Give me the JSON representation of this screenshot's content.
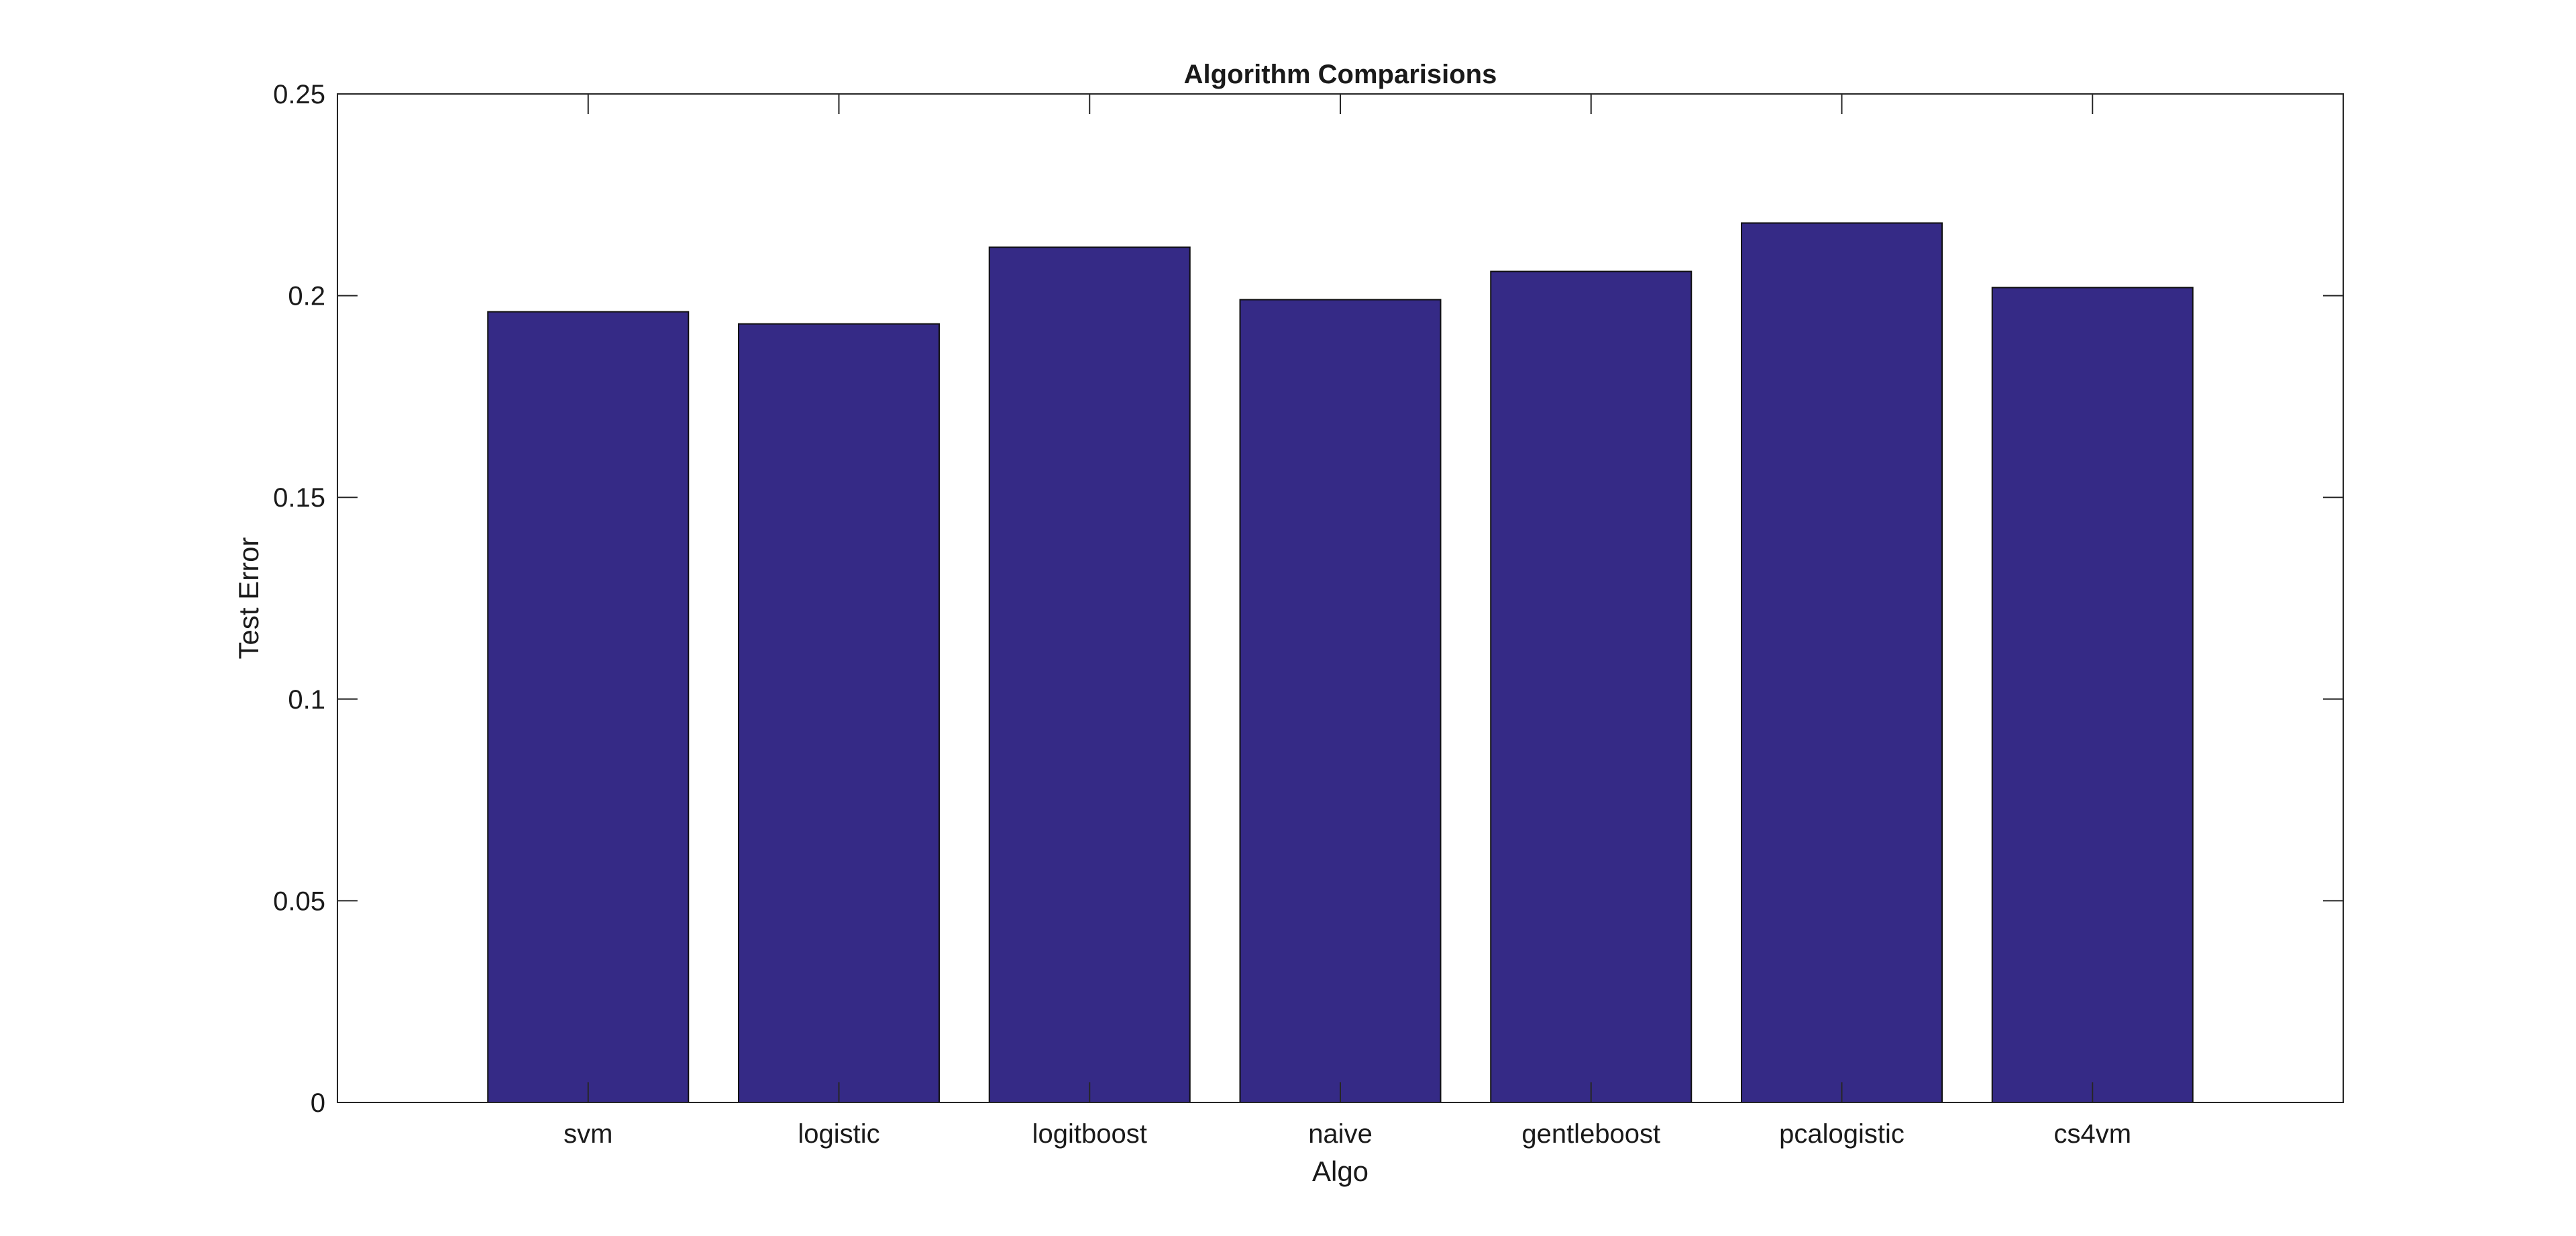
{
  "chart_data": {
    "type": "bar",
    "title": "Algorithm Comparisions",
    "xlabel": "Algo",
    "ylabel": "Test Error",
    "categories": [
      "svm",
      "logistic",
      "logitboost",
      "naive",
      "gentleboost",
      "pcalogistic",
      "cs4vm"
    ],
    "values": [
      0.196,
      0.193,
      0.212,
      0.199,
      0.206,
      0.218,
      0.202
    ],
    "ylim": [
      0,
      0.25
    ],
    "yticks": [
      0,
      0.05,
      0.1,
      0.15,
      0.2,
      0.25
    ],
    "ytick_labels": [
      "0",
      "0.05",
      "0.1",
      "0.15",
      "0.2",
      "0.25"
    ],
    "xlim": [
      0,
      8
    ],
    "grid": false,
    "legend": "none",
    "bar_color": "#352a86"
  }
}
